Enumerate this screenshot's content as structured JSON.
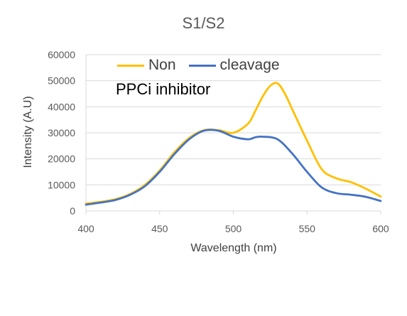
{
  "chart_data": {
    "type": "line",
    "title": "S1/S2",
    "annotation": "PPCi inhibitor",
    "xlabel": "Wavelength (nm)",
    "ylabel": "Intensity (A.U)",
    "xlim": [
      400,
      600
    ],
    "ylim": [
      0,
      60000
    ],
    "xticks": [
      400,
      450,
      500,
      550,
      600
    ],
    "yticks": [
      0,
      10000,
      20000,
      30000,
      40000,
      50000,
      60000
    ],
    "grid": "horizontal",
    "legend_position": "top",
    "series": [
      {
        "name": "Non",
        "color": "#FFC000",
        "x": [
          400,
          410,
          420,
          430,
          440,
          450,
          460,
          470,
          480,
          490,
          500,
          510,
          515,
          520,
          525,
          530,
          535,
          540,
          550,
          560,
          570,
          580,
          590,
          600
        ],
        "y": [
          2800,
          3500,
          4500,
          6500,
          10000,
          15500,
          22500,
          28000,
          31000,
          31000,
          30000,
          33500,
          38500,
          44000,
          48000,
          49000,
          45000,
          39000,
          27000,
          16000,
          12500,
          11000,
          8500,
          5500
        ]
      },
      {
        "name": "cleavage",
        "color": "#4472C4",
        "x": [
          400,
          410,
          420,
          430,
          440,
          450,
          460,
          470,
          480,
          490,
          500,
          510,
          515,
          520,
          530,
          540,
          550,
          560,
          570,
          580,
          590,
          600
        ],
        "y": [
          2400,
          3200,
          4200,
          6200,
          9500,
          15000,
          21800,
          27500,
          30800,
          30800,
          28500,
          27500,
          28300,
          28500,
          27500,
          22000,
          15000,
          9000,
          6800,
          6200,
          5400,
          3800
        ]
      }
    ]
  }
}
